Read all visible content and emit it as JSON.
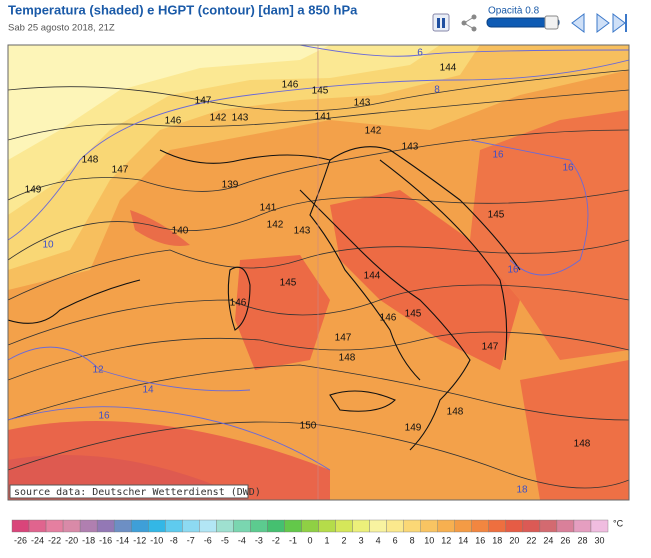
{
  "header": {
    "title": "Temperatura (shaded) e HGPT (contour) [dam] a 850 hPa",
    "subtitle": "Sab 25 agosto 2018, 21Z",
    "opacity_label": "Opacità 0.8"
  },
  "map": {
    "source": "source data: Deutscher Wetterdienst (DWD)",
    "contour_labels": [
      "147",
      "146",
      "145",
      "143",
      "144",
      "141",
      "142",
      "143",
      "142",
      "143",
      "146",
      "148",
      "147",
      "149",
      "139",
      "141",
      "142",
      "143",
      "140",
      "145",
      "146",
      "144",
      "145",
      "146",
      "145",
      "147",
      "148",
      "147",
      "148",
      "149",
      "150",
      "148"
    ],
    "isotherm_labels": [
      "6",
      "8",
      "10",
      "12",
      "14",
      "16",
      "16",
      "16",
      "16",
      "18"
    ]
  },
  "colorbar": {
    "unit": "°C",
    "labels": [
      "-26",
      "-24",
      "-22",
      "-20",
      "-18",
      "-16",
      "-14",
      "-12",
      "-10",
      "-8",
      "-7",
      "-6",
      "-5",
      "-4",
      "-3",
      "-2",
      "-1",
      "0",
      "1",
      "2",
      "3",
      "4",
      "6",
      "8",
      "10",
      "12",
      "14",
      "16",
      "18",
      "20",
      "22",
      "24",
      "26",
      "28",
      "30"
    ],
    "colors": [
      "#d9457a",
      "#e0648e",
      "#e57fa0",
      "#d98aa8",
      "#b07fb0",
      "#9378b5",
      "#6d8fc4",
      "#3e9fd8",
      "#33b7e6",
      "#5fcbee",
      "#8ddaf2",
      "#b2e6f5",
      "#9fe0d0",
      "#7ad6b0",
      "#5ccb8f",
      "#45c070",
      "#63c84a",
      "#8fd044",
      "#b5dc4a",
      "#d5e75a",
      "#ecf07a",
      "#f8f3a0",
      "#fbe98d",
      "#fbd876",
      "#f9c462",
      "#f7b050",
      "#f49b45",
      "#f28640",
      "#ee6f3f",
      "#e65c45",
      "#db5a55",
      "#d36a70",
      "#d9809a",
      "#e59ec0",
      "#f0bde0"
    ]
  }
}
